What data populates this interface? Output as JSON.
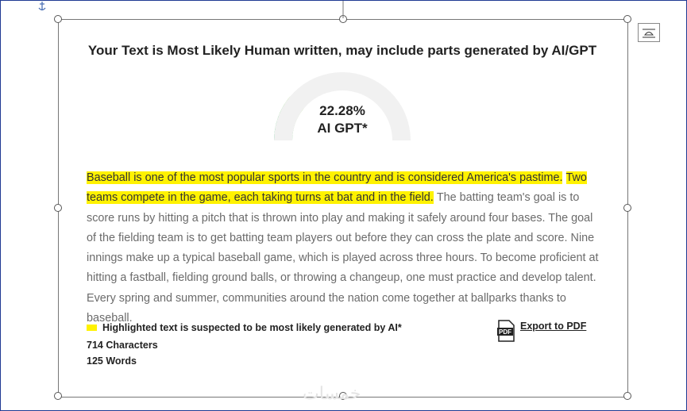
{
  "title": "Your Text is Most Likely Human written, may include parts generated by AI/GPT",
  "gauge": {
    "value": 22.28,
    "value_label": "22.28%",
    "range": [
      0,
      100
    ],
    "label": "AI GPT*"
  },
  "paragraph": [
    {
      "text": "Baseball is one of the most popular sports in the country and is considered America's pastime.",
      "highlighted": true
    },
    {
      "text": "Two teams compete in the game, each taking turns at bat and in the field.",
      "highlighted": true
    },
    {
      "text": "The batting team's goal is to score runs by hitting a pitch that is thrown into play and making it safely around four bases. The goal of the fielding team is to get batting team players out before they can cross the plate and score. Nine innings make up a typical baseball game, which is played across three hours. To become proficient at hitting a fastball, fielding ground balls, or throwing a changeup, one must practice and develop talent. Every spring and summer, communities around the nation come together at ballparks thanks to baseball.",
      "highlighted": false
    }
  ],
  "legend": "Highlighted text is suspected to be most likely generated by AI*",
  "characters": "714 Characters",
  "words": "125 Words",
  "export": "Export to PDF",
  "pdf_icon": "PDF",
  "watermark": "خمسات"
}
